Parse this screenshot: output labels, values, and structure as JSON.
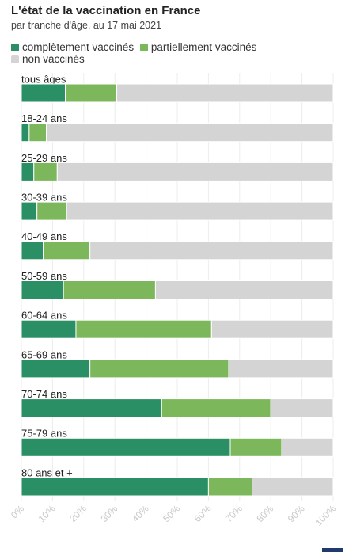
{
  "chart_data": {
    "type": "bar",
    "orientation": "horizontal",
    "stacked": true,
    "title": "L'état de la vaccination en France",
    "subtitle": "par tranche d'âge, au 17 mai 2021",
    "categories": [
      "tous âges",
      "18-24 ans",
      "25-29 ans",
      "30-39 ans",
      "40-49 ans",
      "50-59 ans",
      "60-64 ans",
      "65-69 ans",
      "70-74 ans",
      "75-79 ans",
      "80 ans et +"
    ],
    "series": [
      {
        "name": "complètement vaccinés",
        "color": "#2a8f64",
        "values": [
          14.1,
          2.5,
          4.0,
          5.0,
          7.0,
          13.5,
          17.5,
          22.0,
          45.0,
          67.0,
          60.0
        ]
      },
      {
        "name": "partiellement vaccinés",
        "color": "#7cb85b",
        "values": [
          16.5,
          5.5,
          7.5,
          9.5,
          15.0,
          29.5,
          43.5,
          44.5,
          35.0,
          16.5,
          14.0
        ]
      },
      {
        "name": "non vaccinés",
        "color": "#d4d4d4",
        "values": [
          69.4,
          92.0,
          88.5,
          85.5,
          78.0,
          57.0,
          39.0,
          33.5,
          20.0,
          16.5,
          26.0
        ]
      }
    ],
    "xlim": [
      0,
      100
    ],
    "xticks": [
      "0%",
      "10%",
      "20%",
      "30%",
      "40%",
      "50%",
      "60%",
      "70%",
      "80%",
      "90%",
      "100%"
    ],
    "grid": true,
    "legend_position": "top-left"
  }
}
